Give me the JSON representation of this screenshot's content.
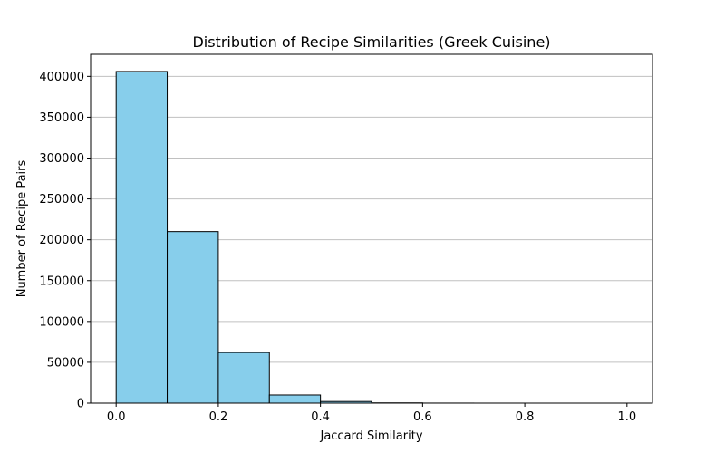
{
  "chart_data": {
    "type": "bar",
    "title": "Distribution of Recipe Similarities (Greek Cuisine)",
    "xlabel": "Jaccard Similarity",
    "ylabel": "Number of Recipe Pairs",
    "bin_edges": [
      0.0,
      0.1,
      0.2,
      0.3,
      0.4,
      0.5,
      0.6,
      0.7,
      0.8,
      0.9,
      1.0
    ],
    "values": [
      406000,
      210000,
      62000,
      10000,
      2000,
      300,
      50,
      10,
      0,
      0
    ],
    "xlim": [
      -0.05,
      1.05
    ],
    "ylim": [
      0,
      427000
    ],
    "x_ticks": [
      0.0,
      0.2,
      0.4,
      0.6,
      0.8,
      1.0
    ],
    "x_tick_labels": [
      "0.0",
      "0.2",
      "0.4",
      "0.6",
      "0.8",
      "1.0"
    ],
    "y_ticks": [
      0,
      50000,
      100000,
      150000,
      200000,
      250000,
      300000,
      350000,
      400000
    ],
    "y_tick_labels": [
      "0",
      "50000",
      "100000",
      "150000",
      "200000",
      "250000",
      "300000",
      "350000",
      "400000"
    ],
    "grid": "y",
    "colors": {
      "bar_fill": "#87ceeb",
      "bar_edge": "#000000",
      "grid": "#c0c0c0"
    }
  }
}
